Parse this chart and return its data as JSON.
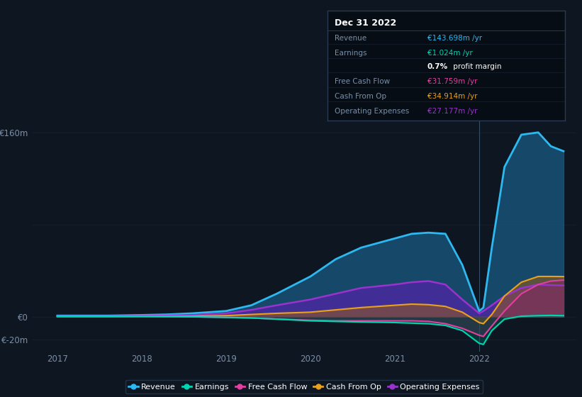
{
  "background_color": "#0e1621",
  "plot_bg_color": "#0e1621",
  "grid_color": "#1a2535",
  "tick_color": "#7a8fa8",
  "ylim": [
    -30,
    175
  ],
  "series": {
    "revenue": {
      "label": "Revenue",
      "color": "#2eb8f0",
      "fill_color": "#1a6a9a",
      "fill_alpha": 0.6,
      "lw": 2.0,
      "x": [
        2017.0,
        2017.3,
        2017.6,
        2018.0,
        2018.3,
        2018.6,
        2019.0,
        2019.3,
        2019.6,
        2020.0,
        2020.3,
        2020.6,
        2021.0,
        2021.2,
        2021.4,
        2021.6,
        2021.8,
        2022.0,
        2022.05,
        2022.15,
        2022.3,
        2022.5,
        2022.7,
        2022.85,
        2023.0
      ],
      "y": [
        1.0,
        1.0,
        1.0,
        1.5,
        2.0,
        3.0,
        5.0,
        10.0,
        20.0,
        35.0,
        50.0,
        60.0,
        68.0,
        72.0,
        73.0,
        72.0,
        45.0,
        5.0,
        8.0,
        60.0,
        130.0,
        158.0,
        160.0,
        148.0,
        143.7
      ]
    },
    "operating_expenses": {
      "label": "Operating Expenses",
      "color": "#9933cc",
      "fill_color": "#5522aa",
      "fill_alpha": 0.7,
      "lw": 1.8,
      "x": [
        2017.0,
        2017.3,
        2017.6,
        2018.0,
        2018.3,
        2018.6,
        2019.0,
        2019.3,
        2019.6,
        2020.0,
        2020.3,
        2020.6,
        2021.0,
        2021.2,
        2021.4,
        2021.6,
        2021.8,
        2022.0,
        2022.05,
        2022.15,
        2022.3,
        2022.5,
        2022.7,
        2022.85,
        2023.0
      ],
      "y": [
        0.5,
        0.5,
        0.5,
        0.8,
        1.0,
        1.5,
        3.0,
        6.0,
        10.0,
        15.0,
        20.0,
        25.0,
        28.0,
        30.0,
        31.0,
        28.0,
        15.0,
        3.0,
        5.0,
        10.0,
        18.0,
        25.0,
        28.0,
        27.5,
        27.2
      ]
    },
    "cash_from_op": {
      "label": "Cash From Op",
      "color": "#e8a020",
      "fill_color": "#a06010",
      "fill_alpha": 0.5,
      "lw": 1.5,
      "x": [
        2017.0,
        2017.3,
        2017.6,
        2018.0,
        2018.3,
        2018.6,
        2019.0,
        2019.3,
        2019.6,
        2020.0,
        2020.3,
        2020.6,
        2021.0,
        2021.2,
        2021.4,
        2021.6,
        2021.8,
        2022.0,
        2022.05,
        2022.15,
        2022.3,
        2022.5,
        2022.7,
        2022.85,
        2023.0
      ],
      "y": [
        0.3,
        0.3,
        0.3,
        0.5,
        0.5,
        0.5,
        1.0,
        2.0,
        3.0,
        4.0,
        6.0,
        8.0,
        10.0,
        11.0,
        10.5,
        9.0,
        4.0,
        -5.0,
        -6.0,
        2.0,
        18.0,
        30.0,
        35.0,
        35.0,
        34.9
      ]
    },
    "free_cash_flow": {
      "label": "Free Cash Flow",
      "color": "#e040a0",
      "fill_color": "#802060",
      "fill_alpha": 0.4,
      "lw": 1.5,
      "x": [
        2017.0,
        2017.3,
        2017.6,
        2018.0,
        2018.3,
        2018.6,
        2019.0,
        2019.3,
        2019.6,
        2020.0,
        2020.3,
        2020.6,
        2021.0,
        2021.2,
        2021.4,
        2021.6,
        2021.8,
        2022.0,
        2022.05,
        2022.15,
        2022.3,
        2022.5,
        2022.7,
        2022.85,
        2023.0
      ],
      "y": [
        0.2,
        0.2,
        0.2,
        0.3,
        0.2,
        0.0,
        -0.5,
        -1.0,
        -2.0,
        -3.0,
        -3.5,
        -3.5,
        -3.5,
        -3.5,
        -4.0,
        -6.0,
        -10.0,
        -16.0,
        -17.0,
        -8.0,
        5.0,
        20.0,
        28.0,
        31.0,
        31.8
      ]
    },
    "earnings": {
      "label": "Earnings",
      "color": "#00d4b0",
      "fill_color": "#006655",
      "fill_alpha": 0.4,
      "lw": 1.5,
      "x": [
        2017.0,
        2017.3,
        2017.6,
        2018.0,
        2018.3,
        2018.6,
        2019.0,
        2019.3,
        2019.6,
        2020.0,
        2020.3,
        2020.6,
        2021.0,
        2021.2,
        2021.4,
        2021.6,
        2021.8,
        2022.0,
        2022.05,
        2022.15,
        2022.3,
        2022.5,
        2022.7,
        2022.85,
        2023.0
      ],
      "y": [
        0.3,
        0.3,
        0.3,
        0.3,
        0.2,
        0.0,
        -0.5,
        -1.0,
        -2.0,
        -3.5,
        -4.0,
        -4.5,
        -5.0,
        -5.5,
        -6.0,
        -7.5,
        -12.0,
        -23.0,
        -24.0,
        -12.0,
        -2.0,
        0.5,
        1.0,
        1.2,
        1.0
      ]
    }
  },
  "legend": [
    {
      "label": "Revenue",
      "color": "#2eb8f0"
    },
    {
      "label": "Earnings",
      "color": "#00d4b0"
    },
    {
      "label": "Free Cash Flow",
      "color": "#e040a0"
    },
    {
      "label": "Cash From Op",
      "color": "#e8a020"
    },
    {
      "label": "Operating Expenses",
      "color": "#9933cc"
    }
  ],
  "vertical_line_x": 2022.0,
  "vertical_line_color": "#3a5570",
  "tooltip": {
    "title": "Dec 31 2022",
    "title_color": "#ffffff",
    "bg_color": "#070d14",
    "border_color": "#2a3a50",
    "rows": [
      {
        "label": "Revenue",
        "label_color": "#7a8fa8",
        "value": "€143.698m /yr",
        "value_color": "#2eb8f0"
      },
      {
        "label": "Earnings",
        "label_color": "#7a8fa8",
        "value": "€1.024m /yr",
        "value_color": "#00d4b0"
      },
      {
        "label": "",
        "label_color": "#7a8fa8",
        "value": "0.7% profit margin",
        "value_color": "#ffffff",
        "bold_part": "0.7%"
      },
      {
        "label": "Free Cash Flow",
        "label_color": "#7a8fa8",
        "value": "€31.759m /yr",
        "value_color": "#e040a0"
      },
      {
        "label": "Cash From Op",
        "label_color": "#7a8fa8",
        "value": "€34.914m /yr",
        "value_color": "#e8a020"
      },
      {
        "label": "Operating Expenses",
        "label_color": "#7a8fa8",
        "value": "€27.177m /yr",
        "value_color": "#9933cc"
      }
    ]
  }
}
